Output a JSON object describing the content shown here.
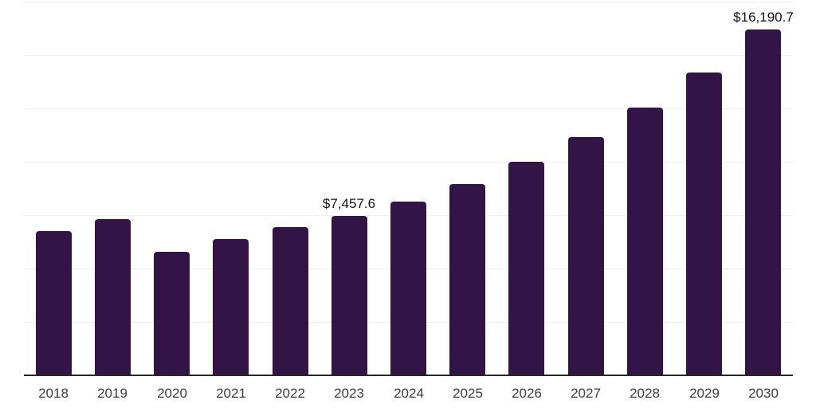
{
  "chart_data": {
    "type": "bar",
    "title": "",
    "xlabel": "",
    "ylabel": "",
    "categories": [
      "2018",
      "2019",
      "2020",
      "2021",
      "2022",
      "2023",
      "2024",
      "2025",
      "2026",
      "2027",
      "2028",
      "2029",
      "2030"
    ],
    "values": [
      6765,
      7295,
      5780,
      6390,
      6925,
      7457.6,
      8140,
      8970,
      9990,
      11145,
      12545,
      14185,
      16190.7
    ],
    "labeled_values": [
      {
        "category": "2023",
        "label": "$7,457.6"
      },
      {
        "category": "2030",
        "label": "$16,190.7"
      }
    ],
    "ylim": [
      0,
      17500
    ],
    "gridline_step": 2500,
    "grid": "horizontal",
    "legend": "none",
    "bar_color": "#331447",
    "axis_color": "#262626",
    "gridline_color": "#efeef0",
    "value_label_color": "#111111",
    "tick_label_color": "#3c3c3c",
    "background": "#ffffff"
  }
}
